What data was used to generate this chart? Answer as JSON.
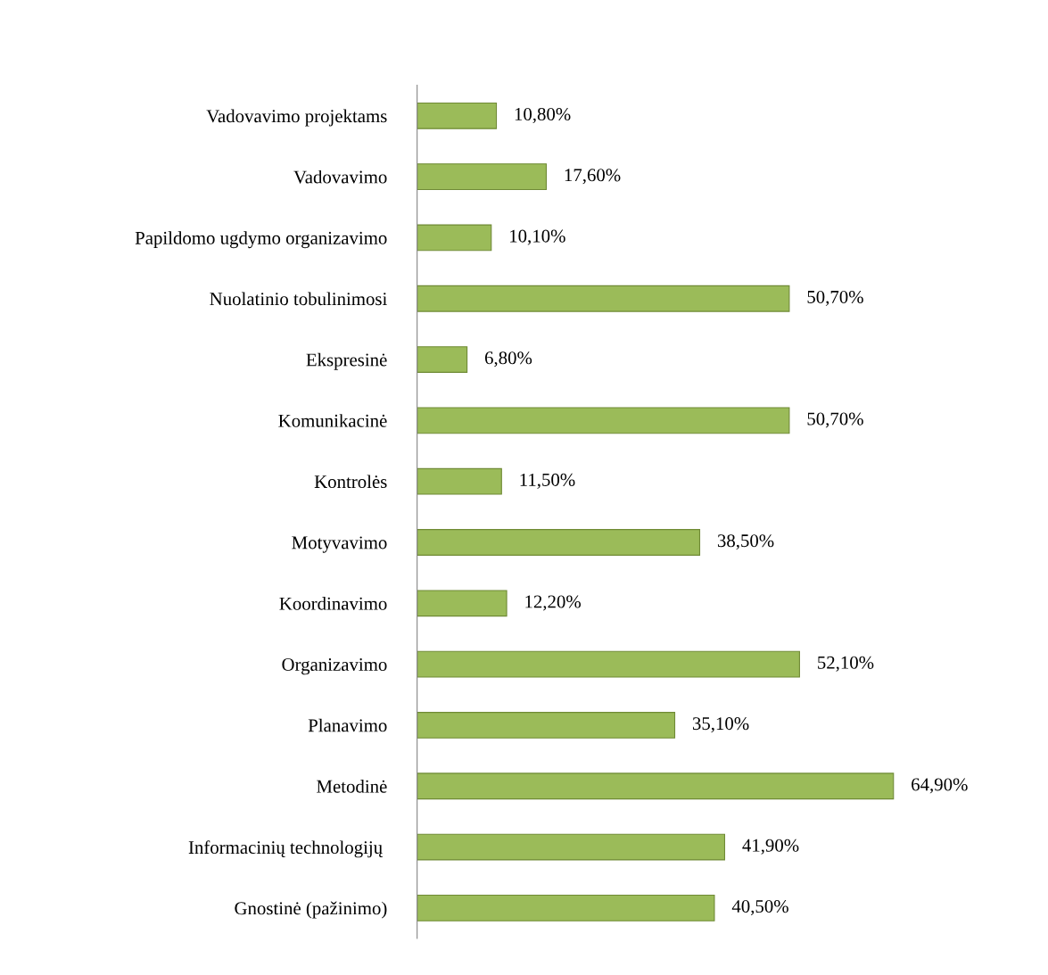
{
  "chart_data": {
    "type": "bar",
    "orientation": "horizontal",
    "categories": [
      "Vadovavimo projektams",
      "Vadovavimo",
      "Papildomo ugdymo organizavimo",
      "Nuolatinio tobulinimosi",
      "Ekspresinė",
      "Komunikacinė",
      "Kontrolės",
      "Motyvavimo",
      "Koordinavimo",
      "Organizavimo",
      "Planavimo",
      "Metodinė",
      "Informacinių technologijų ",
      "Gnostinė (pažinimo)"
    ],
    "values": [
      10.8,
      17.6,
      10.1,
      50.7,
      6.8,
      50.7,
      11.5,
      38.5,
      12.2,
      52.1,
      35.1,
      64.9,
      41.9,
      40.5
    ],
    "value_labels": [
      "10,80%",
      "17,60%",
      "10,10%",
      "50,70%",
      "6,80%",
      "50,70%",
      "11,50%",
      "38,50%",
      "12,20%",
      "52,10%",
      "35,10%",
      "64,90%",
      "41,90%",
      "40,50%"
    ],
    "color": "#9bbb59",
    "tick_labels": "y",
    "grid": false
  }
}
